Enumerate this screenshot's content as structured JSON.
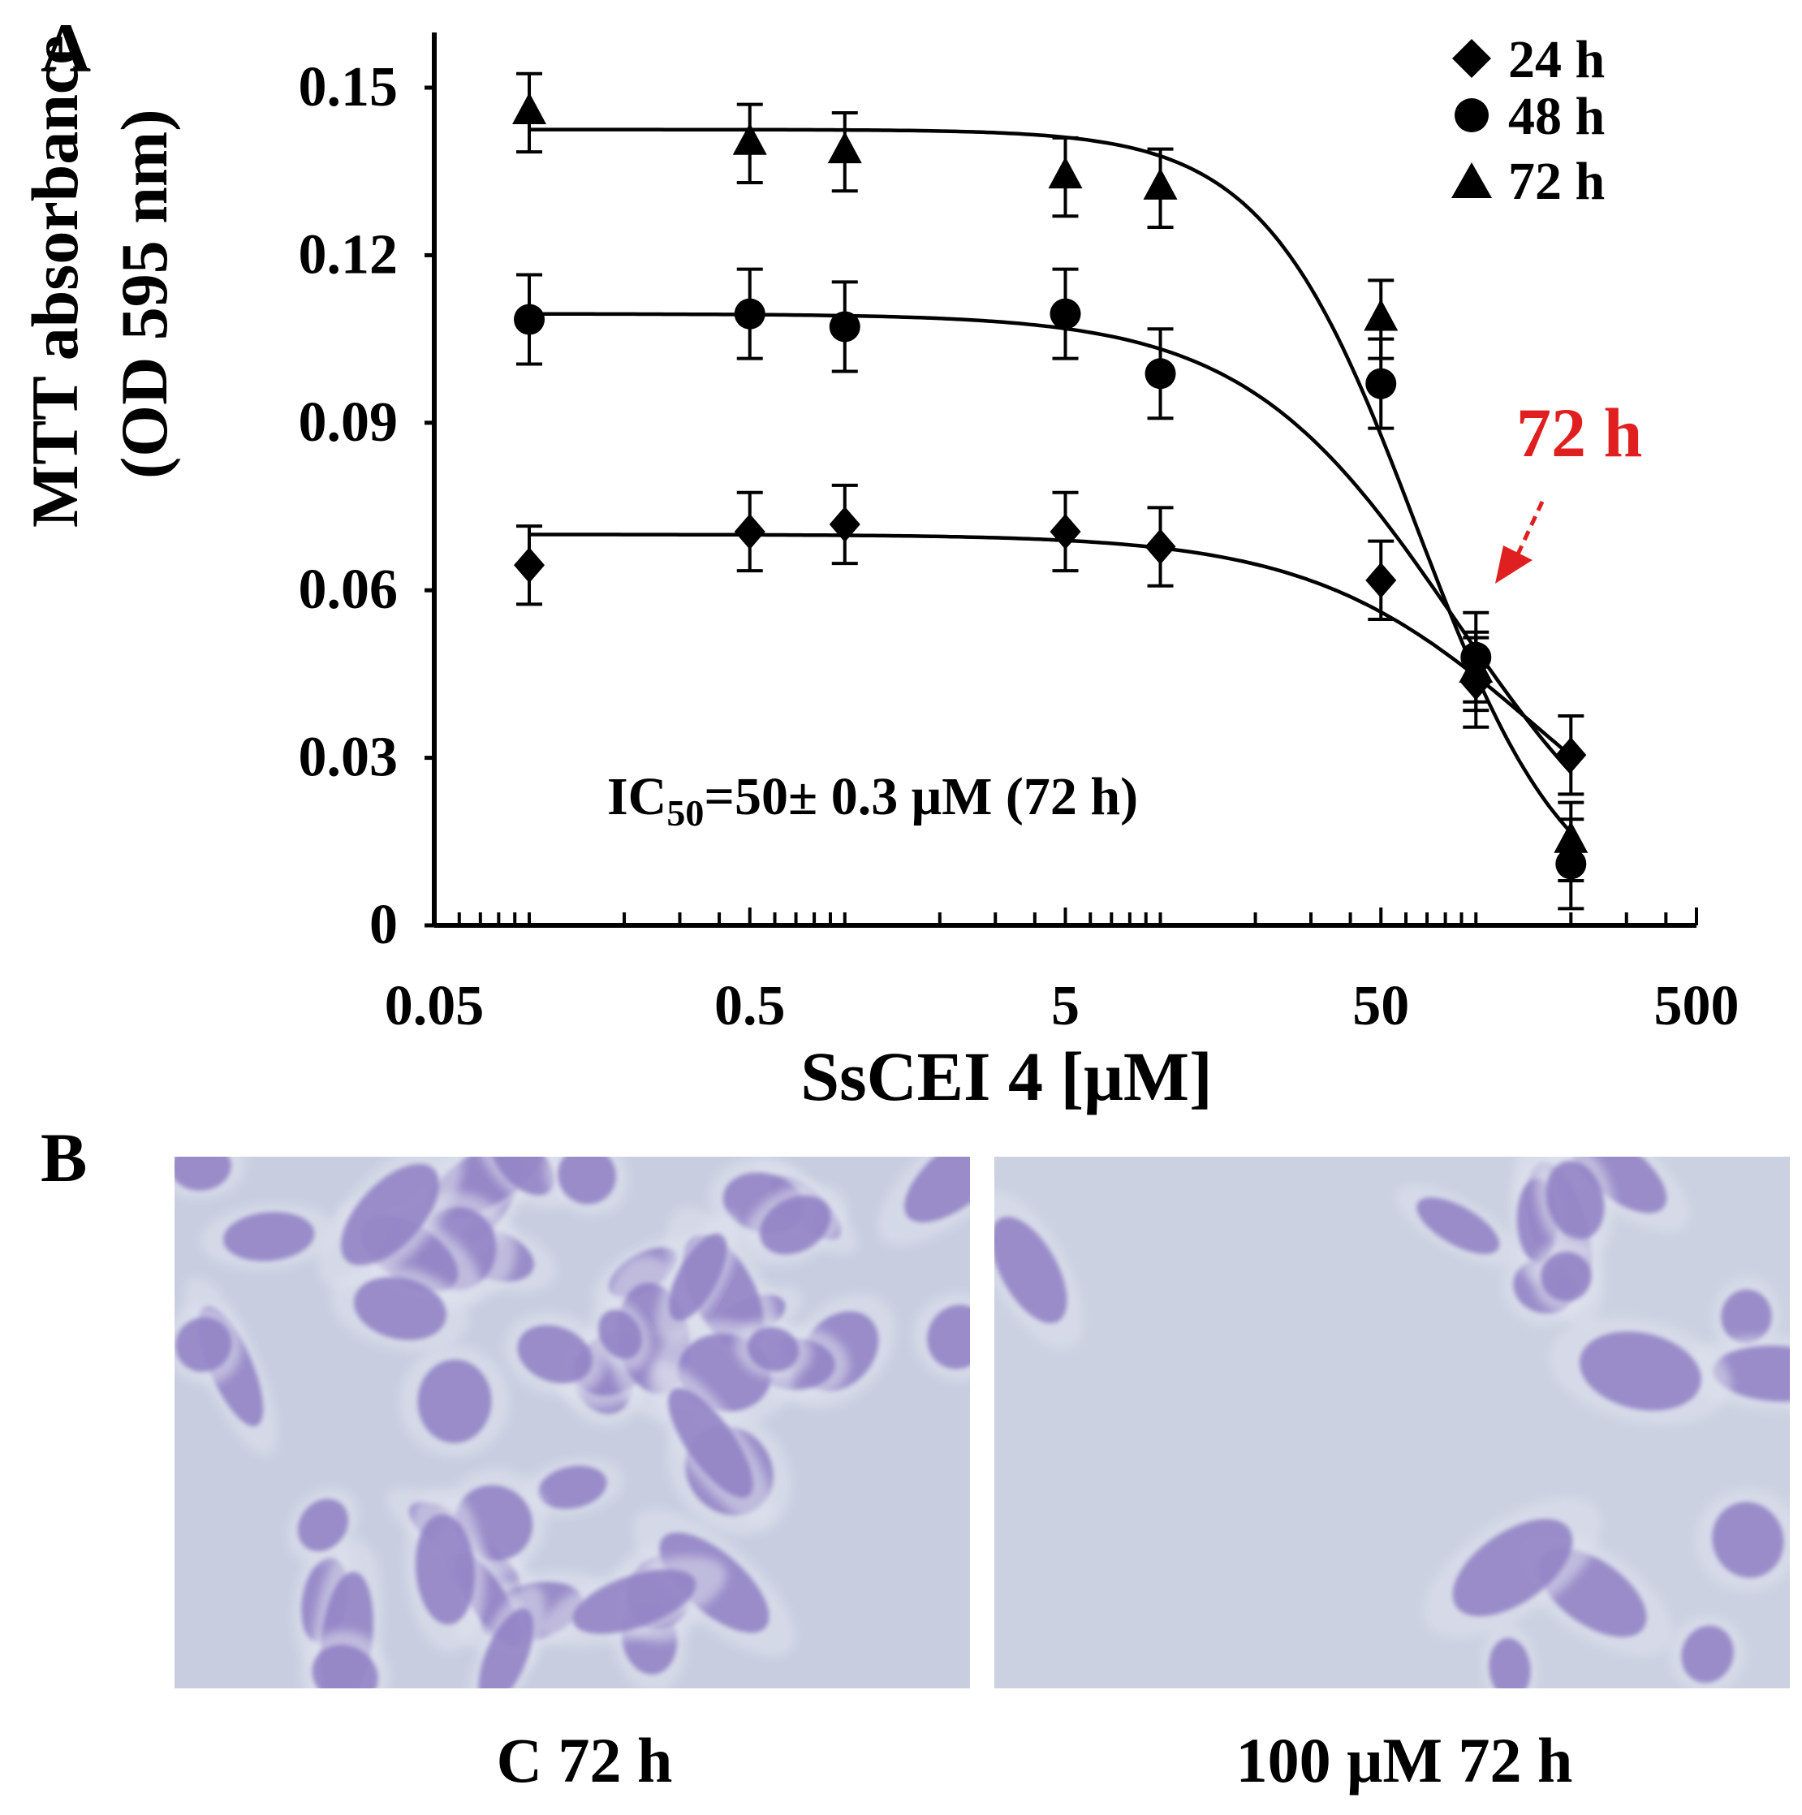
{
  "panels": {
    "a_label": "A",
    "b_label": "B"
  },
  "chart_data": {
    "type": "scatter",
    "title": "",
    "xlabel": "SsCEI 4 [μM]",
    "ylabel_line1": "MTT absorbance",
    "ylabel_line2": "(OD 595 nm)",
    "xscale": "log",
    "xlim": [
      0.05,
      500
    ],
    "ylim": [
      0,
      0.16
    ],
    "xticks": [
      {
        "value": 0.05,
        "label": "0.05"
      },
      {
        "value": 0.5,
        "label": "0.5"
      },
      {
        "value": 5,
        "label": "5"
      },
      {
        "value": 50,
        "label": "50"
      },
      {
        "value": 500,
        "label": "500"
      }
    ],
    "yticks": [
      {
        "value": 0,
        "label": "0"
      },
      {
        "value": 0.03,
        "label": "0.03"
      },
      {
        "value": 0.06,
        "label": "0.06"
      },
      {
        "value": 0.09,
        "label": "0.09"
      },
      {
        "value": 0.12,
        "label": "0.12"
      },
      {
        "value": 0.15,
        "label": "0.15"
      }
    ],
    "grid": false,
    "legend_position": "top-right",
    "series": [
      {
        "name": "24 h",
        "marker": "diamond",
        "x": [
          0.1,
          0.5,
          1,
          5,
          10,
          50,
          100,
          200
        ],
        "y": [
          0.0645,
          0.0705,
          0.0718,
          0.0705,
          0.0678,
          0.0618,
          0.0435,
          0.0305
        ],
        "error": [
          0.007,
          0.007,
          0.007,
          0.007,
          0.007,
          0.007,
          0.008,
          0.007
        ],
        "fit": {
          "top": 0.07,
          "bottom": 0.0,
          "ec50": 160,
          "hill": 1.2
        }
      },
      {
        "name": "48 h",
        "marker": "circle",
        "x": [
          0.1,
          0.5,
          1,
          5,
          10,
          50,
          100,
          200
        ],
        "y": [
          0.1085,
          0.1095,
          0.1072,
          0.1095,
          0.0988,
          0.097,
          0.048,
          0.011
        ],
        "error": [
          0.008,
          0.008,
          0.008,
          0.008,
          0.008,
          0.008,
          0.008,
          0.008
        ],
        "fit": {
          "top": 0.1095,
          "bottom": 0.0,
          "ec50": 86,
          "hill": 1.3
        }
      },
      {
        "name": "72 h",
        "marker": "triangle",
        "x": [
          0.1,
          0.5,
          1,
          5,
          10,
          50,
          100,
          200
        ],
        "y": [
          0.1455,
          0.14,
          0.1385,
          0.134,
          0.132,
          0.1085,
          0.0455,
          0.015
        ],
        "error": [
          0.007,
          0.007,
          0.007,
          0.007,
          0.007,
          0.007,
          0.007,
          0.007
        ],
        "fit": {
          "top": 0.1425,
          "bottom": 0.0,
          "ec50": 65,
          "hill": 1.8
        }
      }
    ],
    "annotations": {
      "ic50_prefix": "IC",
      "ic50_sub": "50",
      "ic50_rest": "=50± 0.3 μM  (72 h)",
      "arrow_label": "72 h",
      "arrow_color": "#e02020"
    }
  },
  "micrographs": [
    {
      "caption": "C 72 h"
    },
    {
      "caption": "100 μM 72 h"
    }
  ],
  "colors": {
    "stain": "#8f7fc4",
    "background_cell": "#c6ccdf"
  }
}
